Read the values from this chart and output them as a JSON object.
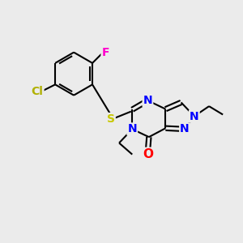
{
  "background_color": "#ebebeb",
  "bond_color": "#000000",
  "atom_colors": {
    "F": "#ff00cc",
    "Cl": "#b0b000",
    "S": "#c8c800",
    "N": "#0000ff",
    "O": "#ff0000",
    "C": "#000000"
  },
  "font_size": 10,
  "figsize": [
    3.0,
    3.0
  ],
  "dpi": 100,
  "xlim": [
    0,
    10
  ],
  "ylim": [
    0,
    10
  ]
}
